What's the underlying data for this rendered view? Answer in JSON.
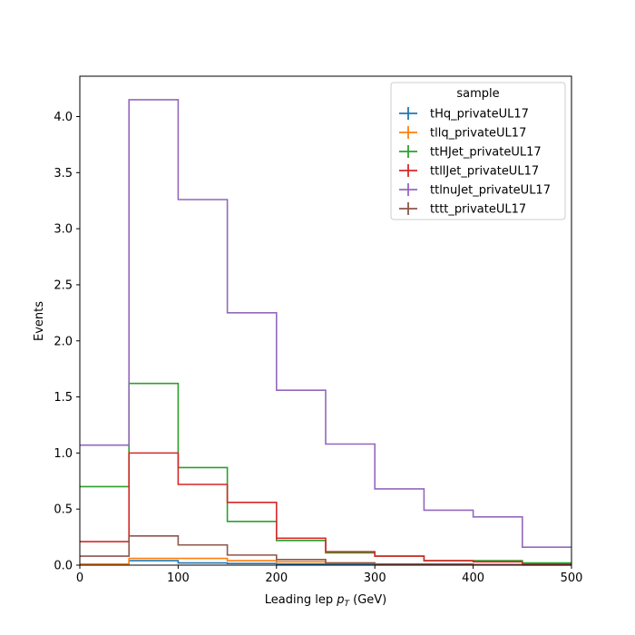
{
  "chart_data": {
    "type": "step",
    "xlabel_main": "Leading lep ",
    "xlabel_var": "p",
    "xlabel_sub": "T",
    "xlabel_unit": " (GeV)",
    "ylabel": "Events",
    "xlim": [
      0,
      500
    ],
    "ylim": [
      0,
      4.36
    ],
    "x_ticks": [
      0,
      100,
      200,
      300,
      400,
      500
    ],
    "y_ticks": [
      0.0,
      0.5,
      1.0,
      1.5,
      2.0,
      2.5,
      3.0,
      3.5,
      4.0
    ],
    "bin_edges": [
      0,
      50,
      100,
      150,
      200,
      250,
      300,
      350,
      400,
      450,
      500
    ],
    "legend_title": "sample",
    "legend_position": "upper right",
    "grid": false,
    "series": [
      {
        "name": "tHq_privateUL17",
        "color": "#1f77b4",
        "values": [
          0.01,
          0.04,
          0.02,
          0.015,
          0.01,
          0.007,
          0.005,
          0.003,
          0.002,
          0.001
        ]
      },
      {
        "name": "tllq_privateUL17",
        "color": "#ff7f0e",
        "values": [
          0.01,
          0.06,
          0.06,
          0.04,
          0.03,
          0.02,
          0.01,
          0.01,
          0.005,
          0.003
        ]
      },
      {
        "name": "ttHJet_privateUL17",
        "color": "#2ca02c",
        "values": [
          0.7,
          1.62,
          0.87,
          0.39,
          0.22,
          0.11,
          0.08,
          0.04,
          0.04,
          0.02
        ]
      },
      {
        "name": "ttllJet_privateUL17",
        "color": "#d62728",
        "values": [
          0.21,
          1.0,
          0.72,
          0.56,
          0.24,
          0.12,
          0.08,
          0.04,
          0.03,
          0.01
        ]
      },
      {
        "name": "ttlnuJet_privateUL17",
        "color": "#9467bd",
        "values": [
          1.07,
          4.15,
          3.26,
          2.25,
          1.56,
          1.08,
          0.68,
          0.49,
          0.43,
          0.16
        ]
      },
      {
        "name": "tttt_privateUL17",
        "color": "#8c564b",
        "values": [
          0.08,
          0.26,
          0.18,
          0.09,
          0.05,
          0.02,
          0.01,
          0.01,
          0.005,
          0.003
        ]
      }
    ]
  }
}
